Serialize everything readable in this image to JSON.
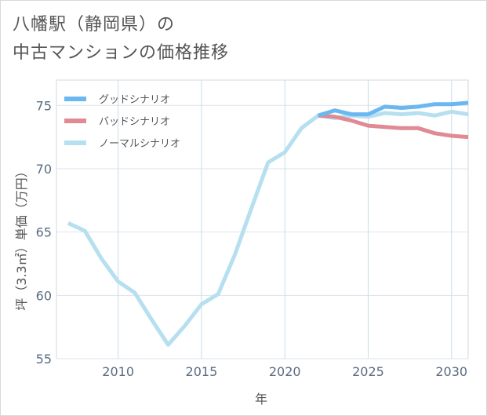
{
  "page": {
    "title_line1": "八幡駅（静岡県）の",
    "title_line2": "中古マンションの価格推移"
  },
  "chart_data": {
    "type": "line",
    "xlabel": "年",
    "ylabel": "坪（3.3㎡）単価（万円）",
    "xlim": [
      2006.3,
      2031
    ],
    "ylim": [
      55,
      77
    ],
    "x_ticks": [
      2010,
      2015,
      2020,
      2025,
      2030
    ],
    "y_ticks": [
      55,
      60,
      65,
      70,
      75
    ],
    "grid": true,
    "legend_position": "top-left",
    "series": [
      {
        "name": "グッドシナリオ",
        "color": "#6ab8ef",
        "x": [
          2022,
          2023,
          2024,
          2025,
          2026,
          2027,
          2028,
          2029,
          2030,
          2031
        ],
        "y": [
          74.2,
          74.6,
          74.3,
          74.3,
          74.9,
          74.8,
          74.9,
          75.1,
          75.1,
          75.2
        ]
      },
      {
        "name": "バッドシナリオ",
        "color": "#e08a94",
        "x": [
          2022,
          2023,
          2024,
          2025,
          2026,
          2027,
          2028,
          2029,
          2030,
          2031
        ],
        "y": [
          74.2,
          74.1,
          73.8,
          73.4,
          73.3,
          73.2,
          73.2,
          72.8,
          72.6,
          72.5
        ]
      },
      {
        "name": "ノーマルシナリオ",
        "color": "#b6dff0",
        "x": [
          2007,
          2008,
          2009,
          2010,
          2011,
          2012,
          2013,
          2014,
          2015,
          2016,
          2017,
          2018,
          2019,
          2020,
          2021,
          2022,
          2023,
          2024,
          2025,
          2026,
          2027,
          2028,
          2029,
          2030,
          2031
        ],
        "y": [
          65.7,
          65.1,
          62.9,
          61.1,
          60.2,
          58.1,
          56.1,
          57.6,
          59.3,
          60.1,
          63.2,
          66.9,
          70.5,
          71.3,
          73.2,
          74.2,
          74.0,
          74.2,
          74.1,
          74.4,
          74.3,
          74.4,
          74.2,
          74.5,
          74.3
        ]
      }
    ]
  }
}
